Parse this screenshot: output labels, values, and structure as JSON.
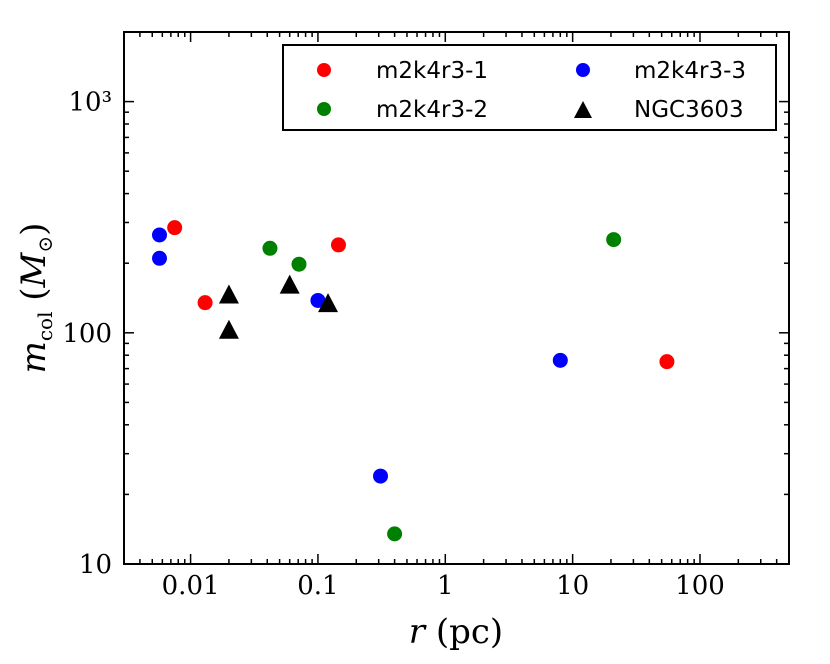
{
  "chart_data": {
    "type": "scatter",
    "x_scale": "log",
    "y_scale": "log",
    "xlim": [
      0.003,
      500
    ],
    "ylim": [
      10,
      2000
    ],
    "grid": false,
    "legend_position": "top-right",
    "xlabel": "r (pc)",
    "ylabel": "m_col (M_⊙)",
    "x_ticks": [
      {
        "value": 0.01,
        "label": "0.01"
      },
      {
        "value": 0.1,
        "label": "0.1"
      },
      {
        "value": 1,
        "label": "1"
      },
      {
        "value": 10,
        "label": "10"
      },
      {
        "value": 100,
        "label": "100"
      }
    ],
    "y_ticks": [
      {
        "value": 10,
        "label": "10"
      },
      {
        "value": 100,
        "label": "100"
      },
      {
        "value": 1000,
        "label": "10³"
      }
    ],
    "series": [
      {
        "name": "m2k4r3-1",
        "marker": "circle",
        "color": "#ff0000",
        "points": [
          [
            0.0075,
            285
          ],
          [
            0.013,
            135
          ],
          [
            0.145,
            240
          ],
          [
            55,
            75
          ]
        ]
      },
      {
        "name": "m2k4r3-2",
        "marker": "circle",
        "color": "#008000",
        "points": [
          [
            0.042,
            232
          ],
          [
            0.071,
            198
          ],
          [
            21,
            253
          ],
          [
            0.4,
            13.5
          ]
        ]
      },
      {
        "name": "m2k4r3-3",
        "marker": "circle",
        "color": "#0000ff",
        "points": [
          [
            0.0057,
            265
          ],
          [
            0.0057,
            210
          ],
          [
            0.1,
            138
          ],
          [
            0.31,
            24
          ],
          [
            8,
            76
          ]
        ]
      },
      {
        "name": "NGC3603",
        "marker": "triangle",
        "color": "#000000",
        "points": [
          [
            0.02,
            145
          ],
          [
            0.02,
            102
          ],
          [
            0.06,
            160
          ],
          [
            0.12,
            133
          ]
        ]
      }
    ]
  }
}
